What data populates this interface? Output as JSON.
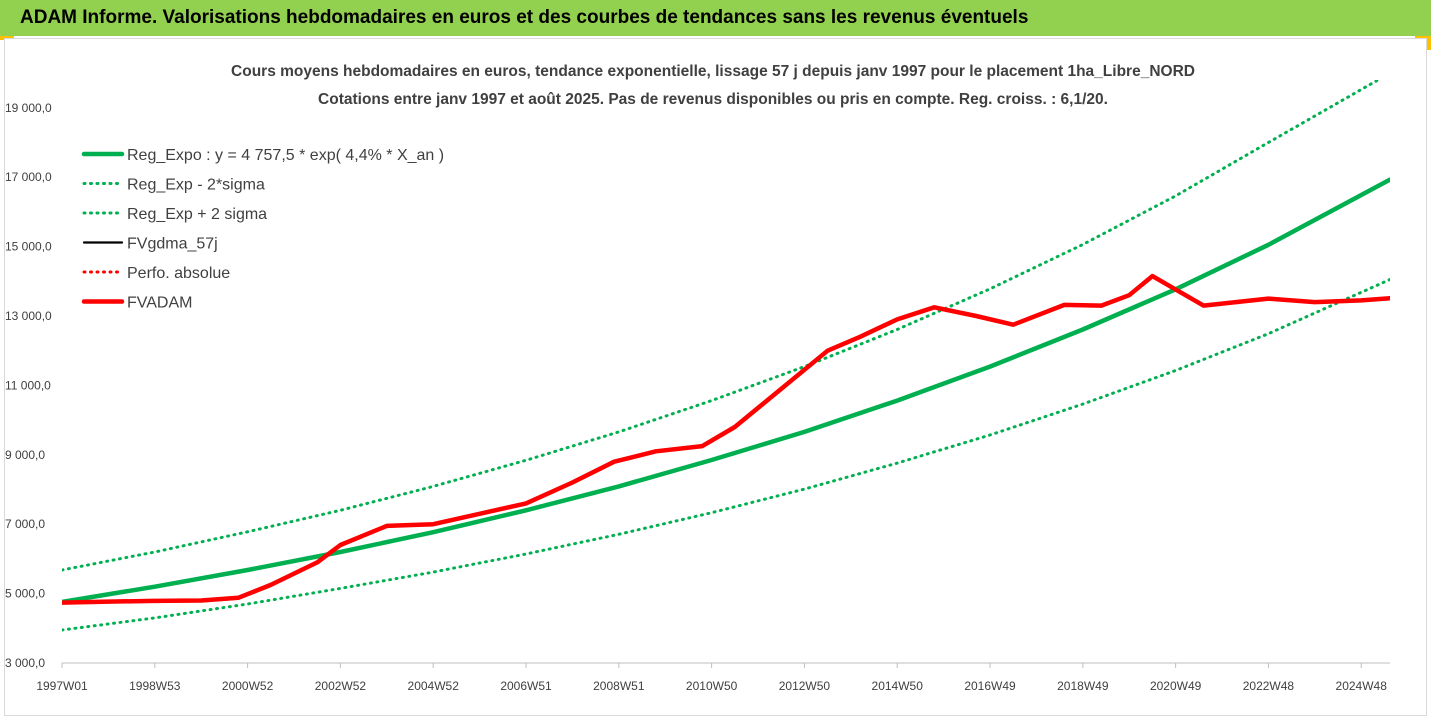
{
  "header": {
    "title": "ADAM Informe. Valorisations hebdomadaires en euros et des courbes de tendances sans les revenus éventuels"
  },
  "colors": {
    "banner": "#92d050",
    "accent_corner": "#ffc000",
    "trend_green": "#00b050",
    "fvadam_red": "#ff0000",
    "fvgdma_black": "#000000"
  },
  "chart_data": {
    "type": "line",
    "title_lines": [
      "Cours moyens hebdomadaires en euros, tendance exponentielle, lissage 57 j depuis janv 1997 pour le placement 1ha_Libre_NORD",
      "Cotations entre janv 1997 et août 2025.  Pas de revenus disponibles ou pris en compte. Reg. croiss. : 6,1/20."
    ],
    "x_domain": [
      1997.0,
      2025.62
    ],
    "ylim": [
      3000,
      19800
    ],
    "y_ticks": [
      3000,
      5000,
      7000,
      9000,
      11000,
      13000,
      15000,
      17000,
      19000
    ],
    "y_tick_labels": [
      "3 000,0",
      "5 000,0",
      "7 000,0",
      "9 000,0",
      "11 000,0",
      "13 000,0",
      "15 000,0",
      "17 000,0",
      "19 000,0"
    ],
    "x_tick_labels": [
      {
        "x": 1997.0,
        "label": "1997W01"
      },
      {
        "x": 1999.0,
        "label": "1998W53"
      },
      {
        "x": 2001.0,
        "label": "2000W52"
      },
      {
        "x": 2003.0,
        "label": "2002W52"
      },
      {
        "x": 2005.0,
        "label": "2004W52"
      },
      {
        "x": 2007.0,
        "label": "2006W51"
      },
      {
        "x": 2009.0,
        "label": "2008W51"
      },
      {
        "x": 2011.0,
        "label": "2010W50"
      },
      {
        "x": 2013.0,
        "label": "2012W50"
      },
      {
        "x": 2015.0,
        "label": "2014W50"
      },
      {
        "x": 2017.0,
        "label": "2016W49"
      },
      {
        "x": 2019.0,
        "label": "2018W49"
      },
      {
        "x": 2021.0,
        "label": "2020W49"
      },
      {
        "x": 2023.0,
        "label": "2022W48"
      },
      {
        "x": 2025.0,
        "label": "2024W48"
      }
    ],
    "grid": false,
    "legend_position": "top-left",
    "series": [
      {
        "name": "Reg_Expo : y = 4 757,5 * exp( 4,4% *  X_an )",
        "style": "solid-thick",
        "color": "#00b050",
        "x": [
          1997.0,
          1999.0,
          2001.0,
          2003.0,
          2005.0,
          2007.0,
          2009.0,
          2011.0,
          2013.0,
          2015.0,
          2017.0,
          2019.0,
          2021.0,
          2023.0,
          2025.62
        ],
        "y": [
          4760,
          5200,
          5680,
          6200,
          6770,
          7400,
          8090,
          8850,
          9660,
          10560,
          11540,
          12610,
          13770,
          15050,
          16930
        ]
      },
      {
        "name": "Reg_Exp - 2*sigma",
        "style": "dotted",
        "color": "#00b050",
        "x": [
          1997.0,
          1999.0,
          2001.0,
          2003.0,
          2005.0,
          2007.0,
          2009.0,
          2011.0,
          2013.0,
          2015.0,
          2017.0,
          2019.0,
          2021.0,
          2023.0,
          2025.62
        ],
        "y": [
          3950,
          4300,
          4700,
          5150,
          5620,
          6140,
          6710,
          7330,
          8010,
          8760,
          9570,
          10460,
          11430,
          12490,
          14050
        ]
      },
      {
        "name": "Reg_Exp + 2 sigma",
        "style": "dotted",
        "color": "#00b050",
        "x": [
          1997.0,
          1999.0,
          2001.0,
          2003.0,
          2005.0,
          2007.0,
          2009.0,
          2011.0,
          2013.0,
          2015.0,
          2017.0,
          2019.0,
          2021.0,
          2023.0,
          2025.62
        ],
        "y": [
          5680,
          6200,
          6780,
          7400,
          8090,
          8840,
          9660,
          10560,
          11540,
          12610,
          13780,
          15060,
          16460,
          18000,
          20000
        ]
      },
      {
        "name": "FVgdma_57j",
        "style": "solid",
        "color": "#000000",
        "x": [
          1997.0,
          1998.0,
          1999.0,
          2000.0,
          2000.8,
          2001.5,
          2002.5,
          2003.0,
          2004.0,
          2005.0,
          2006.0,
          2007.0,
          2008.0,
          2008.9,
          2009.8,
          2010.8,
          2011.5,
          2012.5,
          2013.5,
          2014.2,
          2015.0,
          2015.8,
          2016.7,
          2017.5,
          2018.6,
          2019.4,
          2020.0,
          2020.5,
          2021.6,
          2022.3,
          2023.0,
          2024.0,
          2025.0,
          2025.62
        ],
        "y": [
          4740,
          4770,
          4790,
          4800,
          4880,
          5250,
          5900,
          6400,
          6950,
          7000,
          7300,
          7600,
          8200,
          8800,
          9100,
          9250,
          9800,
          10900,
          12000,
          12400,
          12900,
          13250,
          13000,
          12750,
          13320,
          13300,
          13600,
          14150,
          13300,
          13400,
          13500,
          13400,
          13450,
          13510
        ]
      },
      {
        "name": "Perfo. absolue",
        "style": "dotted",
        "color": "#ff0000",
        "x": [],
        "y": []
      },
      {
        "name": "FVADAM",
        "style": "solid-thick",
        "color": "#ff0000",
        "x": [
          1997.0,
          1998.0,
          1999.0,
          2000.0,
          2000.8,
          2001.5,
          2002.5,
          2003.0,
          2004.0,
          2005.0,
          2006.0,
          2007.0,
          2008.0,
          2008.9,
          2009.8,
          2010.8,
          2011.5,
          2012.5,
          2013.5,
          2014.2,
          2015.0,
          2015.8,
          2016.7,
          2017.5,
          2018.6,
          2019.4,
          2020.0,
          2020.5,
          2021.6,
          2022.3,
          2023.0,
          2024.0,
          2025.0,
          2025.62
        ],
        "y": [
          4740,
          4770,
          4790,
          4800,
          4880,
          5250,
          5900,
          6400,
          6950,
          7000,
          7300,
          7600,
          8200,
          8800,
          9100,
          9250,
          9800,
          10900,
          12000,
          12400,
          12900,
          13250,
          13000,
          12750,
          13320,
          13300,
          13600,
          14150,
          13300,
          13400,
          13500,
          13400,
          13450,
          13510
        ]
      }
    ]
  }
}
